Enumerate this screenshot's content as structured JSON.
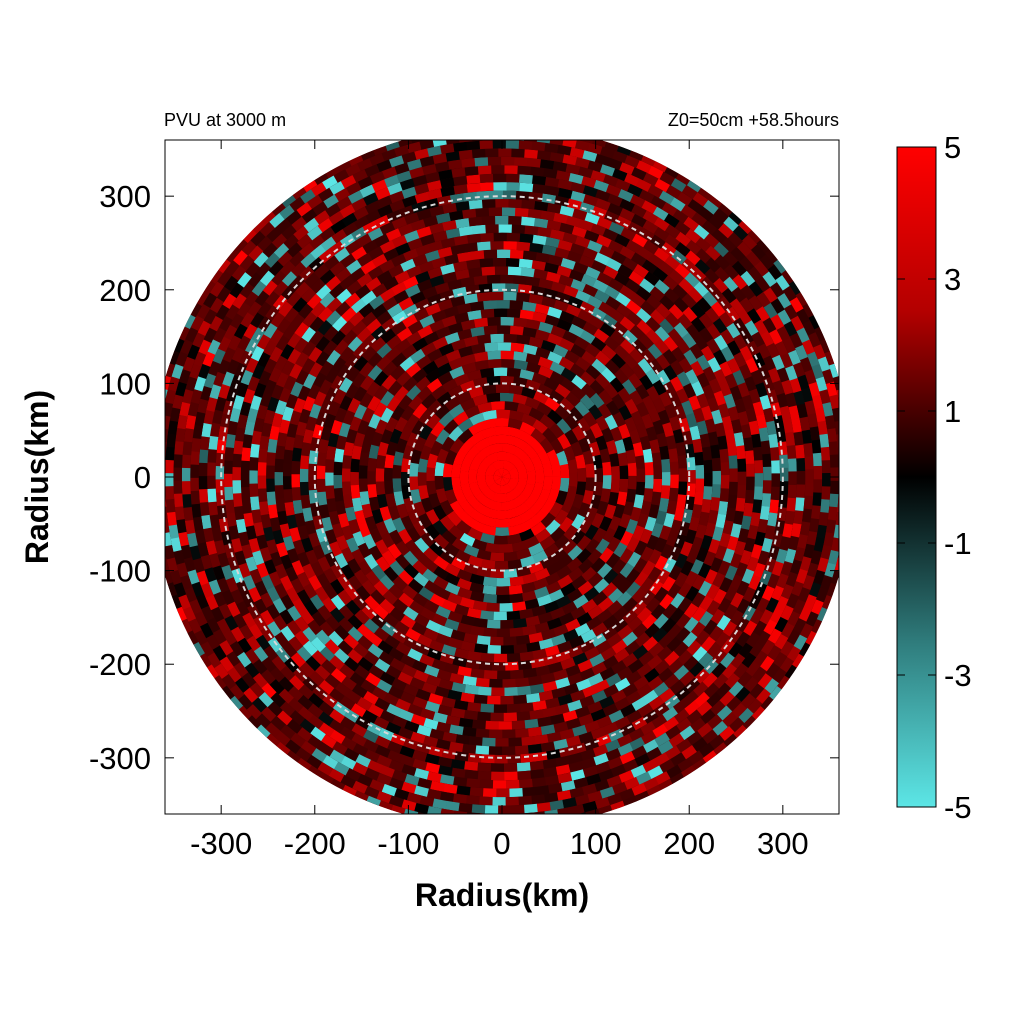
{
  "chart_data": {
    "type": "heatmap",
    "title_left": "PVU at  3000 m",
    "title_right": "Z0=50cm  +58.5hours",
    "xlabel": "Radius(km)",
    "ylabel": "Radius(km)",
    "xlim": [
      -360,
      360
    ],
    "ylim": [
      -360,
      360
    ],
    "x_ticks": [
      -300,
      -200,
      -100,
      0,
      100,
      200,
      300
    ],
    "y_ticks": [
      -300,
      -200,
      -100,
      0,
      100,
      200,
      300
    ],
    "x_tick_labels": [
      "-300",
      "-200",
      "-100",
      "0",
      "100",
      "200",
      "300"
    ],
    "y_tick_labels": [
      "-300",
      "-200",
      "-100",
      "0",
      "100",
      "200",
      "300"
    ],
    "domain_radius_km": 375,
    "reference_circles_km": [
      100,
      200,
      300
    ],
    "colorbar": {
      "range": [
        -5,
        5
      ],
      "tick_labels": [
        "5",
        "3",
        "1",
        "-1",
        "-3",
        "-5"
      ],
      "colors": {
        "max": "#ff0000",
        "zero": "#000000",
        "min": "#5ce6e6"
      }
    },
    "field_description_values": {
      "core_radius_km": 60,
      "core_value": 5,
      "ring_background_value": 1.2
    }
  }
}
